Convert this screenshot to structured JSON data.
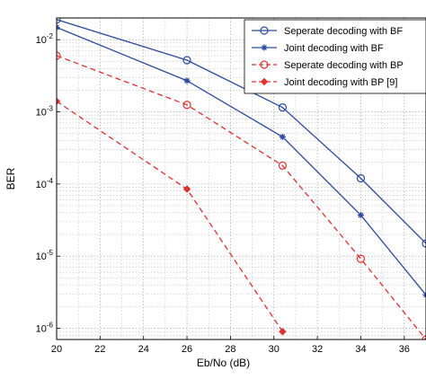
{
  "chart_data": {
    "type": "line",
    "xlabel": "Eb/No (dB)",
    "ylabel": "BER",
    "x_scale": "linear",
    "y_scale": "log",
    "xlim": [
      20,
      37
    ],
    "ylim": [
      7e-07,
      0.02
    ],
    "x_ticks": [
      20,
      22,
      24,
      26,
      28,
      30,
      32,
      34,
      36
    ],
    "y_ticks": [
      {
        "value": 0.01,
        "base": "10",
        "exp": "-2"
      },
      {
        "value": 0.001,
        "base": "10",
        "exp": "-3"
      },
      {
        "value": 0.0001,
        "base": "10",
        "exp": "-4"
      },
      {
        "value": 1e-05,
        "base": "10",
        "exp": "-5"
      },
      {
        "value": 1e-06,
        "base": "10",
        "exp": "-6"
      }
    ],
    "grid": true,
    "legend_position": "top-right",
    "series": [
      {
        "name": "Seperate decoding with BF",
        "color": "#2b4a9b",
        "line_style": "solid",
        "marker": "circle",
        "x": [
          20,
          26,
          30.4,
          34,
          37
        ],
        "y": [
          0.019,
          0.0052,
          0.00115,
          0.00012,
          1.5e-05
        ]
      },
      {
        "name": "Joint decoding with BF",
        "color": "#2b4a9b",
        "line_style": "solid",
        "marker": "star",
        "x": [
          20,
          26,
          30.4,
          34,
          37
        ],
        "y": [
          0.0148,
          0.0027,
          0.00045,
          3.7e-05,
          2.9e-06
        ]
      },
      {
        "name": "Seperate decoding with BP",
        "color": "#e0302f",
        "line_style": "dashed",
        "marker": "circle",
        "x": [
          20,
          26,
          30.4,
          34,
          37
        ],
        "y": [
          0.006,
          0.00125,
          0.00018,
          9.2e-06,
          7e-07
        ]
      },
      {
        "name": "Joint decoding with BP [9]",
        "color": "#e0302f",
        "line_style": "dashed",
        "marker": "diamond",
        "x": [
          20,
          26,
          30.4
        ],
        "y": [
          0.0014,
          8.5e-05,
          9e-07
        ]
      }
    ]
  }
}
